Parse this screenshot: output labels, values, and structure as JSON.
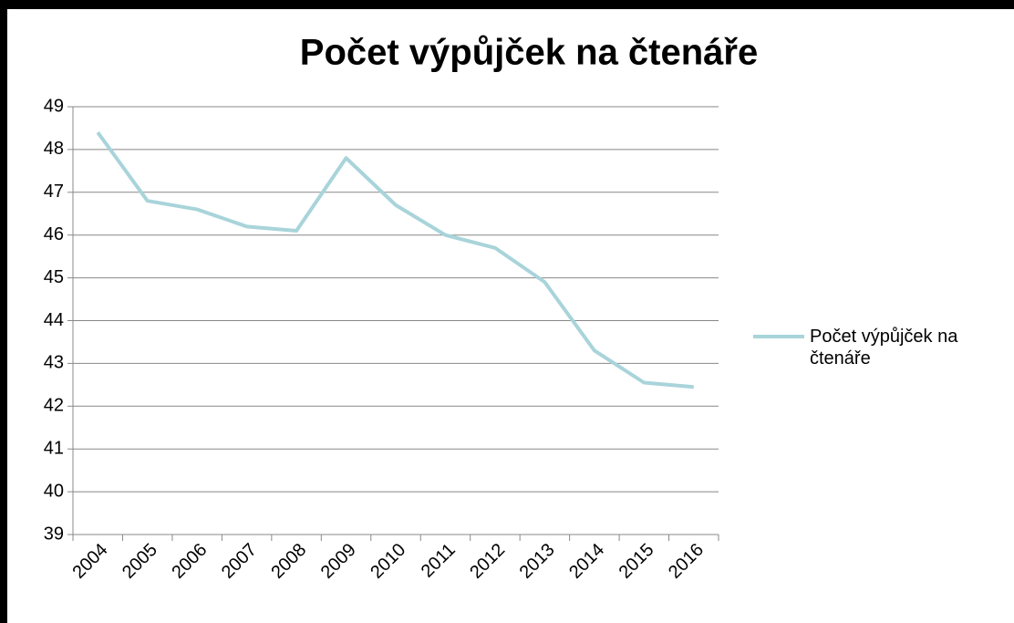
{
  "chart_data": {
    "type": "line",
    "title": "Počet výpůjček na čtenáře",
    "categories": [
      "2004",
      "2005",
      "2006",
      "2007",
      "2008",
      "2009",
      "2010",
      "2011",
      "2012",
      "2013",
      "2014",
      "2015",
      "2016"
    ],
    "series": [
      {
        "name": "Počet výpůjček na čtenáře",
        "color": "#a8d4da",
        "values": [
          48.4,
          46.8,
          46.6,
          46.2,
          46.1,
          47.8,
          46.7,
          46.0,
          45.7,
          44.9,
          43.3,
          42.55,
          42.45
        ]
      }
    ],
    "ylim": [
      39,
      49
    ],
    "yticks": [
      39,
      40,
      41,
      42,
      43,
      44,
      45,
      46,
      47,
      48,
      49
    ],
    "grid": true,
    "legend": "right"
  }
}
